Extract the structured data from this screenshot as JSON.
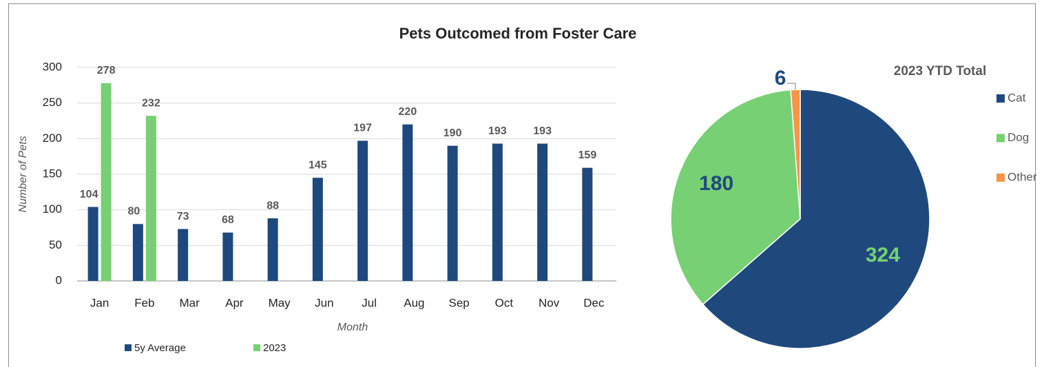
{
  "chart_data": [
    {
      "type": "bar",
      "title": "Pets Outcomed from Foster Care",
      "x_label": "Month",
      "y_label": "Number of Pets",
      "categories": [
        "Jan",
        "Feb",
        "Mar",
        "Apr",
        "May",
        "Jun",
        "Jul",
        "Aug",
        "Sep",
        "Oct",
        "Nov",
        "Dec"
      ],
      "series": [
        {
          "name": "5y Average",
          "color": "#1f497d",
          "values": [
            104,
            80,
            73,
            68,
            88,
            145,
            197,
            220,
            190,
            193,
            193,
            159
          ]
        },
        {
          "name": "2023",
          "color": "#77d073",
          "values": [
            278,
            232,
            null,
            null,
            null,
            null,
            null,
            null,
            null,
            null,
            null,
            null
          ]
        }
      ],
      "ylim": [
        0,
        300
      ],
      "yticks": [
        0,
        50,
        100,
        150,
        200,
        250,
        300
      ],
      "grid": true,
      "legend": "bottom"
    },
    {
      "type": "pie",
      "title": "2023 YTD Total",
      "categories": [
        "Cat",
        "Dog",
        "Other"
      ],
      "values": [
        324,
        180,
        6
      ],
      "colors": [
        "#1f497d",
        "#77d073",
        "#f79646"
      ],
      "legend": "right"
    }
  ]
}
